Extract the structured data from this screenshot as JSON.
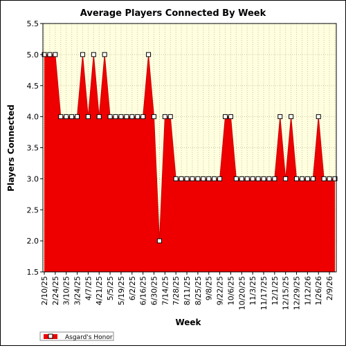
{
  "chart_data": {
    "type": "area",
    "title": "Average Players Connected By Week",
    "xlabel": "Week",
    "ylabel": "Players Connected",
    "ylim": [
      1.5,
      5.5
    ],
    "y_ticks": [
      "1.5",
      "2.0",
      "2.5",
      "3.0",
      "3.5",
      "4.0",
      "4.5",
      "5.0",
      "5.5"
    ],
    "x_tick_labels": [
      "2/10/25",
      "2/24/25",
      "3/10/25",
      "3/24/25",
      "4/7/25",
      "4/21/25",
      "5/5/25",
      "5/19/25",
      "6/2/25",
      "6/16/25",
      "6/30/25",
      "7/14/25",
      "7/28/25",
      "8/11/25",
      "8/25/25",
      "9/8/25",
      "9/22/25",
      "10/6/25",
      "10/20/25",
      "11/3/25",
      "11/17/25",
      "12/1/25",
      "12/15/25",
      "12/29/25",
      "1/12/26",
      "1/26/26",
      "2/9/26"
    ],
    "grid": true,
    "legend_position": "bottom-left",
    "background_color": "#ffffe0",
    "series": [
      {
        "name": "Asgard's Honor",
        "color": "#ee0000",
        "values": [
          5,
          5,
          5,
          4,
          4,
          4,
          4,
          5,
          4,
          5,
          4,
          5,
          4,
          4,
          4,
          4,
          4,
          4,
          4,
          5,
          4,
          2,
          4,
          4,
          3,
          3,
          3,
          3,
          3,
          3,
          3,
          3,
          3,
          4,
          4,
          3,
          3,
          3,
          3,
          3,
          3,
          3,
          3,
          4,
          3,
          4,
          3,
          3,
          3,
          3,
          4,
          3,
          3,
          3
        ]
      }
    ]
  }
}
